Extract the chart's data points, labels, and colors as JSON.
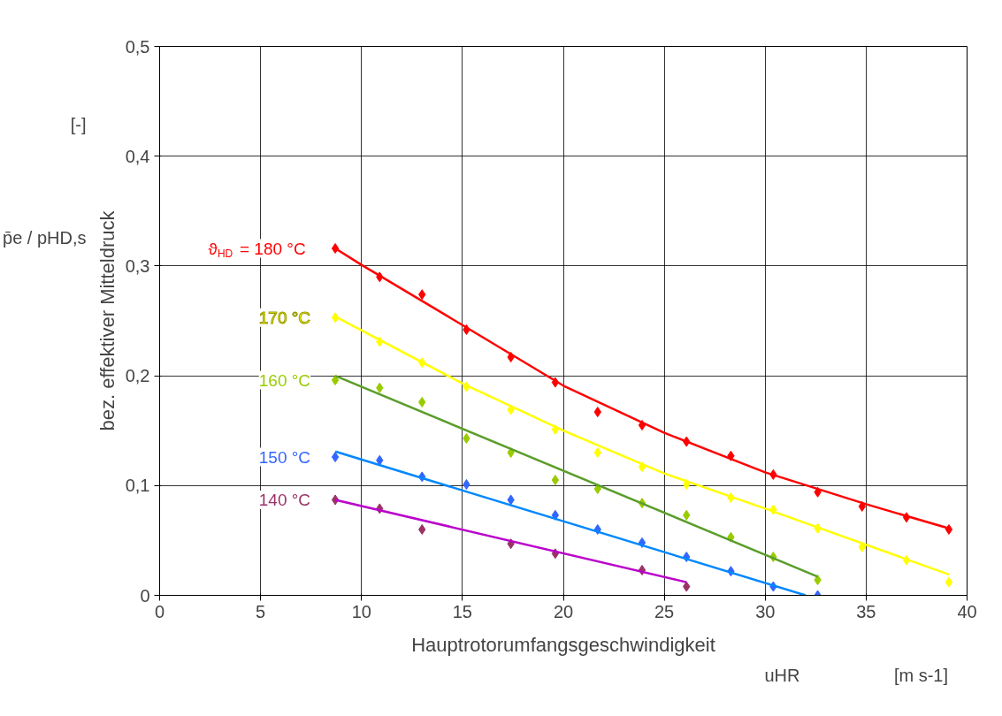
{
  "chart_data": {
    "type": "scatter",
    "xlabel": "Hauptrotorumfangsgeschwindigkeit",
    "ylabel": "bez. effektiver Mitteldruck",
    "annotations": [
      "p̄e / pHD,s",
      "[-]",
      "uHR",
      "[m s-1]"
    ],
    "xlim": [
      0,
      40
    ],
    "xticks": [
      0,
      5,
      10,
      15,
      20,
      25,
      30,
      35,
      40
    ],
    "ylim": [
      0,
      0.5
    ],
    "yticks": [
      0,
      {
        "value": 0.1,
        "label": "0,1"
      },
      {
        "value": 0.2,
        "label": "0,2"
      },
      {
        "value": 0.3,
        "label": "0,3"
      },
      {
        "value": 0.4,
        "label": "0,4"
      },
      {
        "value": 0.5,
        "label": "0,5"
      }
    ],
    "grid": true,
    "legend": false,
    "marker": "diamond",
    "series": [
      {
        "name": "ϑ$_{HD}$ = 180 °C",
        "type": "scatter",
        "color": "#ff0000",
        "x": [
          8.7,
          10.9,
          13.0,
          15.2,
          17.4,
          19.6,
          21.7,
          23.9,
          26.1,
          28.3,
          30.4,
          32.6,
          34.8,
          37.0,
          39.1
        ],
        "values": [
          0.316,
          0.29,
          0.274,
          0.242,
          0.217,
          0.194,
          0.167,
          0.155,
          0.14,
          0.127,
          0.11,
          0.094,
          0.081,
          0.071,
          0.06
        ]
      },
      {
        "name": "170 °C",
        "type": "scatter",
        "color": "#ffff00",
        "x": [
          8.7,
          10.9,
          13.0,
          15.2,
          17.4,
          19.6,
          21.7,
          23.9,
          26.1,
          28.3,
          30.4,
          32.6,
          34.8,
          37.0,
          39.1
        ],
        "values": [
          0.253,
          0.231,
          0.212,
          0.19,
          0.169,
          0.151,
          0.13,
          0.117,
          0.101,
          0.089,
          0.078,
          0.061,
          0.044,
          0.032,
          0.012
        ]
      },
      {
        "name": "160 °C",
        "type": "scatter",
        "color": "#99cc00",
        "x": [
          8.7,
          10.9,
          13.0,
          15.2,
          17.4,
          19.6,
          21.7,
          23.9,
          26.1,
          28.3,
          30.4,
          32.6
        ],
        "values": [
          0.196,
          0.189,
          0.176,
          0.143,
          0.13,
          0.105,
          0.097,
          0.084,
          0.073,
          0.053,
          0.035,
          0.014
        ]
      },
      {
        "name": "150 °C",
        "type": "scatter",
        "color": "#3366ff",
        "x": [
          8.7,
          10.9,
          13.0,
          15.2,
          17.4,
          19.6,
          21.7,
          23.9,
          26.1,
          28.3,
          30.4,
          32.6
        ],
        "values": [
          0.126,
          0.123,
          0.108,
          0.101,
          0.087,
          0.073,
          0.06,
          0.048,
          0.035,
          0.022,
          0.008,
          0.0
        ]
      },
      {
        "name": "140 °C",
        "type": "scatter",
        "color": "#993366",
        "x": [
          8.7,
          10.9,
          13.0,
          17.4,
          19.6,
          23.9,
          26.1
        ],
        "values": [
          0.087,
          0.079,
          0.06,
          0.047,
          0.038,
          0.023,
          0.008
        ]
      },
      {
        "type": "line",
        "marker": "none",
        "color": "#ff0000",
        "x": [
          8.7,
          10,
          15.2,
          20,
          25,
          30,
          35,
          39.1
        ],
        "values": [
          0.316,
          0.301,
          0.244,
          0.191,
          0.148,
          0.112,
          0.083,
          0.061
        ]
      },
      {
        "type": "line",
        "marker": "none",
        "color": "#ffff00",
        "x": [
          8.7,
          15,
          20,
          25,
          30,
          39.1
        ],
        "values": [
          0.254,
          0.193,
          0.15,
          0.111,
          0.079,
          0.019
        ]
      },
      {
        "type": "line",
        "marker": "none",
        "color": "#5a9e2a",
        "x": [
          8.7,
          32.6
        ],
        "values": [
          0.2,
          0.017
        ]
      },
      {
        "type": "line",
        "marker": "none",
        "color": "#0088ff",
        "x": [
          8.7,
          32.0
        ],
        "values": [
          0.131,
          0.0
        ]
      },
      {
        "type": "line",
        "marker": "none",
        "color": "#bb00cc",
        "x": [
          8.7,
          26.1
        ],
        "values": [
          0.087,
          0.012
        ]
      }
    ]
  }
}
